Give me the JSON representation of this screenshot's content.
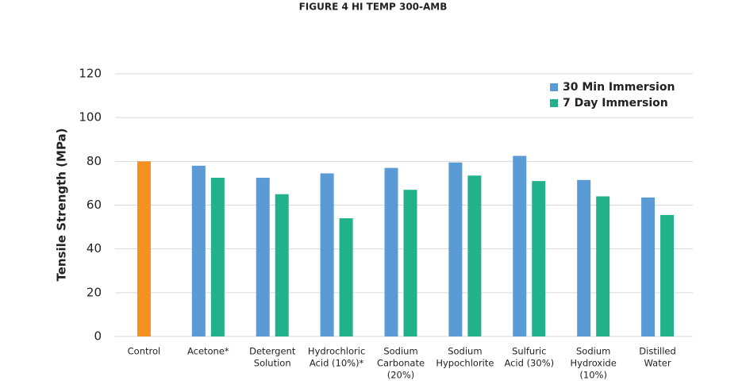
{
  "chart_data": {
    "type": "bar",
    "title": "FIGURE 4 HI TEMP 300-AMB",
    "y_label": "Tensile Strength (MPa)",
    "categories": [
      [
        "Control"
      ],
      [
        "Acetone*"
      ],
      [
        "Detergent",
        "Solution"
      ],
      [
        "Hydrochloric",
        "Acid (10%)*"
      ],
      [
        "Sodium",
        "Carbonate",
        "(20%)"
      ],
      [
        "Sodium",
        "Hypochlorite"
      ],
      [
        "Sulfuric",
        "Acid (30%)"
      ],
      [
        "Sodium",
        "Hydroxide",
        "(10%)"
      ],
      [
        "Distilled",
        "Water"
      ]
    ],
    "series": [
      {
        "name": "30 Min Immersion",
        "color": "#5b9bd5",
        "highlight_color": "#f7901e",
        "values": [
          80,
          78,
          72.5,
          74.5,
          77,
          79.5,
          82.5,
          71.5,
          63.5
        ]
      },
      {
        "name": "7 Day Immersion",
        "color": "#21b28b",
        "values": [
          null,
          72.5,
          65,
          54,
          67,
          73.5,
          71,
          64,
          55.5
        ]
      }
    ],
    "ylim": [
      0,
      120
    ],
    "yticks": [
      0,
      20,
      40,
      60,
      80,
      100,
      120
    ],
    "grid": true,
    "legend": "top-right"
  }
}
